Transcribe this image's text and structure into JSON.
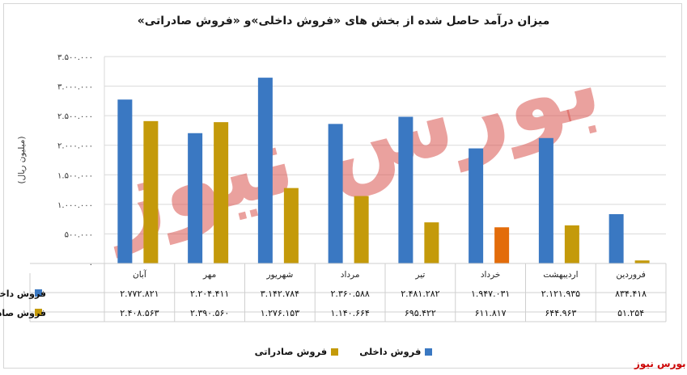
{
  "chart_data": {
    "type": "bar",
    "title": "میزان درآمد حاصل شده از بخش های «فروش داخلی»و «فروش صادراتی»",
    "ylabel": "(میلیون ریال)",
    "ylim": [
      0,
      3500000
    ],
    "yticks": [
      "۰",
      "۵۰۰.۰۰۰",
      "۱.۰۰۰.۰۰۰",
      "۱.۵۰۰.۰۰۰",
      "۲.۰۰۰.۰۰۰",
      "۲.۵۰۰.۰۰۰",
      "۳.۰۰۰.۰۰۰",
      "۳.۵۰۰.۰۰۰"
    ],
    "ytick_values": [
      0,
      500000,
      1000000,
      1500000,
      2000000,
      2500000,
      3000000,
      3500000
    ],
    "categories": [
      "فروردین",
      "اردیبهشت",
      "خرداد",
      "تیر",
      "مرداد",
      "شهریور",
      "مهر",
      "آبان"
    ],
    "series": [
      {
        "name": "فروش داخلی",
        "color": "#3a78c2",
        "values": [
          834418,
          2121935,
          1947031,
          2481282,
          2360588,
          3142784,
          2204411,
          2772821
        ],
        "labels": [
          "۸۳۴.۴۱۸",
          "۲.۱۲۱.۹۳۵",
          "۱.۹۴۷.۰۳۱",
          "۲.۴۸۱.۲۸۲",
          "۲.۳۶۰.۵۸۸",
          "۳.۱۴۲.۷۸۴",
          "۲.۲۰۴.۴۱۱",
          "۲.۷۷۲.۸۲۱"
        ]
      },
      {
        "name": "فروش صادراتی",
        "color": "#c49a0a",
        "values": [
          51254,
          644963,
          611817,
          695422,
          1140664,
          1276153,
          2390560,
          2408563
        ],
        "labels": [
          "۵۱.۲۵۴",
          "۶۴۴.۹۶۳",
          "۶۱۱.۸۱۷",
          "۶۹۵.۴۲۲",
          "۱.۱۴۰.۶۶۴",
          "۱.۲۷۶.۱۵۳",
          "۲.۳۹۰.۵۶۰",
          "۲.۴۰۸.۵۶۳"
        ]
      }
    ],
    "highlight": {
      "series": 1,
      "index": 2,
      "color": "#e36c0a"
    },
    "grid": true,
    "legend_placement": "bottom"
  },
  "watermark": {
    "text": "بورس نیوز",
    "color": "#d9534f"
  },
  "brand": {
    "label": "بورس نیوز",
    "color": "#cc0000"
  }
}
